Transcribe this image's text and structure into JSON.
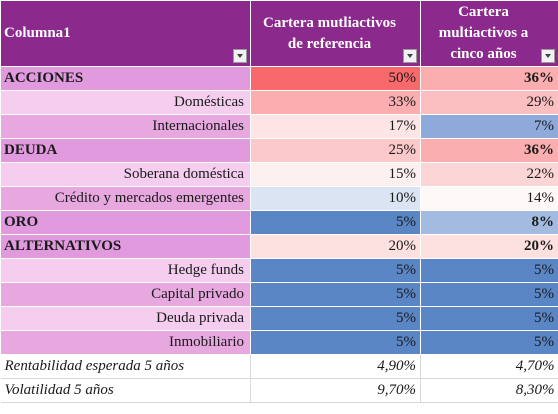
{
  "header": {
    "col1": "Columna1",
    "col2": "Cartera mutliactivos de referencia",
    "col3": "Cartera multiactivos a cinco años"
  },
  "rows": [
    {
      "label": "ACCIONES",
      "ref": "50%",
      "five": "36%",
      "type": "group",
      "ref_color": "#f8696b",
      "five_color": "#fbaeb0"
    },
    {
      "label": "Domésticas",
      "ref": "33%",
      "five": "29%",
      "type": "sub",
      "ref_color": "#fbadb0",
      "five_color": "#fcbfc1"
    },
    {
      "label": "Internacionales",
      "ref": "17%",
      "five": "7%",
      "type": "sub",
      "ref_color": "#fde5e6",
      "five_color": "#8eaadb"
    },
    {
      "label": "DEUDA",
      "ref": "25%",
      "five": "36%",
      "type": "group",
      "ref_color": "#fcc9ca",
      "five_color": "#fbaeb0"
    },
    {
      "label": "Soberana doméstica",
      "ref": "15%",
      "five": "22%",
      "type": "sub",
      "ref_color": "#fdf0f0",
      "five_color": "#fcd5d6"
    },
    {
      "label": "Crédito y mercados emergentes",
      "ref": "10%",
      "five": "14%",
      "type": "sub",
      "ref_color": "#dbe4f2",
      "five_color": "#fef8f8"
    },
    {
      "label": "ORO",
      "ref": "5%",
      "five": "8%",
      "type": "group",
      "ref_color": "#5b86c5",
      "five_color": "#a3bbe0"
    },
    {
      "label": "ALTERNATIVOS",
      "ref": "20%",
      "five": "20%",
      "type": "group",
      "ref_color": "#fde0e0",
      "five_color": "#fde0e0"
    },
    {
      "label": "Hedge funds",
      "ref": "5%",
      "five": "5%",
      "type": "sub",
      "ref_color": "#5b86c5",
      "five_color": "#5b86c5"
    },
    {
      "label": "Capital privado",
      "ref": "5%",
      "five": "5%",
      "type": "sub",
      "ref_color": "#5b86c5",
      "five_color": "#5b86c5"
    },
    {
      "label": "Deuda privada",
      "ref": "5%",
      "five": "5%",
      "type": "sub",
      "ref_color": "#5b86c5",
      "five_color": "#5b86c5"
    },
    {
      "label": "Inmobiliario",
      "ref": "5%",
      "five": "5%",
      "type": "sub",
      "ref_color": "#5b86c5",
      "five_color": "#5b86c5"
    }
  ],
  "footer": [
    {
      "label": "Rentabilidad esperada 5 años",
      "ref": "4,90%",
      "five": "4,70%"
    },
    {
      "label": "Volatilidad 5 años",
      "ref": "9,70%",
      "five": "8,30%"
    }
  ]
}
